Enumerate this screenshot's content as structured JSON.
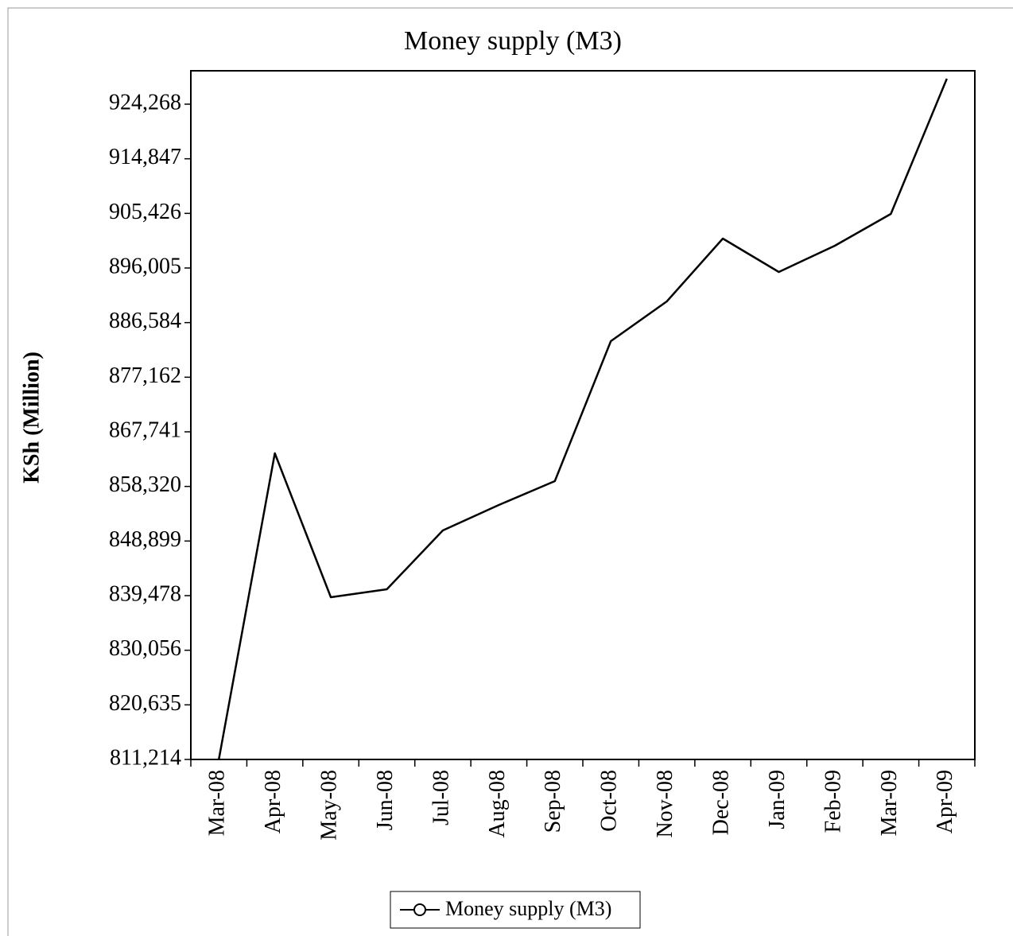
{
  "chart_data": {
    "type": "line",
    "title": "Money supply (M3)",
    "y_label": "KSh (Million)",
    "categories": [
      "Mar-08",
      "Apr-08",
      "May-08",
      "Jun-08",
      "Jul-08",
      "Aug-08",
      "Sep-08",
      "Oct-08",
      "Nov-08",
      "Dec-08",
      "Jan-09",
      "Feb-09",
      "Mar-09",
      "Apr-09"
    ],
    "series": [
      {
        "name": "Money supply (M3)",
        "color": "#000000",
        "values": [
          811214,
          864036,
          839203,
          840575,
          850728,
          855118,
          859234,
          883382,
          890242,
          901081,
          895318,
          899846,
          905334,
          928658
        ]
      }
    ],
    "ylim": [
      811214,
      930030
    ],
    "yticks": [
      {
        "value": 811214,
        "label": "811,214"
      },
      {
        "value": 820635,
        "label": "820,635"
      },
      {
        "value": 830056,
        "label": "830,056"
      },
      {
        "value": 839478,
        "label": "839,478"
      },
      {
        "value": 848899,
        "label": "848,899"
      },
      {
        "value": 858320,
        "label": "858,320"
      },
      {
        "value": 867741,
        "label": "867,741"
      },
      {
        "value": 877162,
        "label": "877,162"
      },
      {
        "value": 886584,
        "label": "886,584"
      },
      {
        "value": 896005,
        "label": "896,005"
      },
      {
        "value": 905426,
        "label": "905,426"
      },
      {
        "value": 914847,
        "label": "914,847"
      },
      {
        "value": 924268,
        "label": "924,268"
      }
    ],
    "legend": "bottom",
    "grid": false
  }
}
